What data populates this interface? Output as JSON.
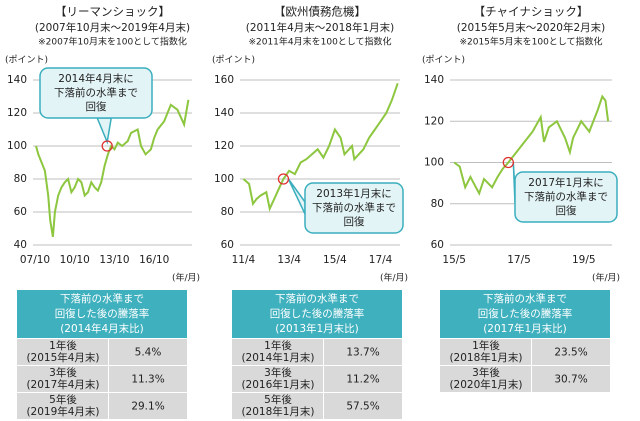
{
  "chart_data": [
    {
      "type": "line",
      "title": "【リーマンショック】",
      "subtitle": "(2007年10月末～2019年4月末)",
      "note": "※2007年10月末を100として指数化",
      "y_label": "(ポイント)",
      "x_label": "(年/月)",
      "color": "#8dc63f",
      "grid": true,
      "x": [
        2007.83,
        2008.0,
        2008.25,
        2008.5,
        2008.75,
        2008.9,
        2009.1,
        2009.25,
        2009.5,
        2009.75,
        2010.0,
        2010.25,
        2010.5,
        2010.75,
        2011.0,
        2011.25,
        2011.5,
        2011.75,
        2012.0,
        2012.25,
        2012.5,
        2012.75,
        2013.0,
        2013.25,
        2013.5,
        2013.75,
        2014.0,
        2014.33,
        2014.75,
        2015.0,
        2015.5,
        2015.75,
        2016.1,
        2016.5,
        2016.75,
        2017.0,
        2017.5,
        2018.0,
        2018.5,
        2018.9,
        2019.0,
        2019.33
      ],
      "values": [
        100,
        95,
        90,
        85,
        70,
        55,
        45,
        60,
        70,
        75,
        78,
        80,
        72,
        75,
        80,
        78,
        70,
        72,
        78,
        75,
        73,
        78,
        88,
        95,
        100,
        98,
        102,
        100,
        103,
        108,
        110,
        100,
        95,
        98,
        105,
        110,
        115,
        125,
        122,
        115,
        113,
        128
      ],
      "xlim": [
        2007.6,
        2019.6
      ],
      "xticks": [
        {
          "value": 2007.75,
          "label": "07/10"
        },
        {
          "value": 2010.75,
          "label": "10/10"
        },
        {
          "value": 2013.75,
          "label": "13/10"
        },
        {
          "value": 2016.75,
          "label": "16/10"
        }
      ],
      "ylim": [
        40,
        140
      ],
      "yticks": [
        40,
        60,
        80,
        100,
        120,
        140
      ],
      "annotation": {
        "text": [
          "2014年4月末に",
          "下落前の水準まで",
          "回復"
        ],
        "x": 2013.2,
        "y": 100
      }
    },
    {
      "type": "line",
      "title": "【欧州債務危機】",
      "subtitle": "(2011年4月末～2018年1月末)",
      "note": "※2011年4月末を100として指数化",
      "y_label": "(ポイント)",
      "x_label": "(年/月)",
      "color": "#8dc63f",
      "grid": true,
      "x": [
        2011.25,
        2011.5,
        2011.67,
        2011.83,
        2012.0,
        2012.25,
        2012.4,
        2012.6,
        2012.83,
        2013.0,
        2013.25,
        2013.5,
        2013.75,
        2014.0,
        2014.25,
        2014.5,
        2014.75,
        2015.0,
        2015.25,
        2015.5,
        2015.67,
        2016.0,
        2016.1,
        2016.5,
        2016.75,
        2017.0,
        2017.25,
        2017.5,
        2017.75,
        2018.0
      ],
      "values": [
        100,
        97,
        85,
        88,
        90,
        92,
        82,
        88,
        95,
        100,
        105,
        103,
        110,
        112,
        115,
        118,
        113,
        120,
        130,
        125,
        115,
        120,
        112,
        118,
        125,
        130,
        135,
        140,
        148,
        158
      ],
      "xlim": [
        2011.1,
        2018.1
      ],
      "xticks": [
        {
          "value": 2011.25,
          "label": "11/4"
        },
        {
          "value": 2013.25,
          "label": "13/4"
        },
        {
          "value": 2015.25,
          "label": "15/4"
        },
        {
          "value": 2017.25,
          "label": "17/4"
        }
      ],
      "ylim": [
        60,
        160
      ],
      "yticks": [
        60,
        80,
        100,
        120,
        140,
        160
      ],
      "annotation": {
        "text": [
          "2013年1月末に",
          "下落前の水準まで",
          "回復"
        ],
        "x": 2013.0,
        "y": 100
      }
    },
    {
      "type": "line",
      "title": "【チャイナショック】",
      "subtitle": "(2015年5月末～2020年2月末)",
      "note": "※2015年5月末を100として指数化",
      "y_label": "(ポイント)",
      "x_label": "(年/月)",
      "color": "#8dc63f",
      "grid": true,
      "x": [
        2015.33,
        2015.5,
        2015.67,
        2015.83,
        2016.0,
        2016.1,
        2016.25,
        2016.5,
        2016.67,
        2016.83,
        2017.0,
        2017.25,
        2017.5,
        2017.75,
        2018.0,
        2018.1,
        2018.25,
        2018.5,
        2018.75,
        2018.9,
        2019.0,
        2019.25,
        2019.5,
        2019.75,
        2019.9,
        2020.0,
        2020.08
      ],
      "values": [
        100,
        98,
        88,
        93,
        88,
        85,
        92,
        88,
        93,
        97,
        100,
        105,
        110,
        115,
        122,
        110,
        117,
        120,
        112,
        105,
        112,
        120,
        115,
        125,
        132,
        130,
        120
      ],
      "xlim": [
        2015.2,
        2020.2
      ],
      "xticks": [
        {
          "value": 2015.33,
          "label": "15/5"
        },
        {
          "value": 2017.33,
          "label": "17/5"
        },
        {
          "value": 2019.33,
          "label": "19/5"
        }
      ],
      "ylim": [
        60,
        140
      ],
      "yticks": [
        60,
        80,
        100,
        120,
        140
      ],
      "annotation": {
        "text": [
          "2017年1月末に",
          "下落前の水準まで",
          "回復"
        ],
        "x": 2017.0,
        "y": 100
      }
    }
  ],
  "tables": [
    {
      "header": [
        "下落前の水準まで",
        "回復した後の騰落率",
        "(2014年4月末比)"
      ],
      "rows": [
        {
          "period": [
            "1年後",
            "(2015年4月末)"
          ],
          "value": "5.4%"
        },
        {
          "period": [
            "3年後",
            "(2017年4月末)"
          ],
          "value": "11.3%"
        },
        {
          "period": [
            "5年後",
            "(2019年4月末)"
          ],
          "value": "29.1%"
        }
      ]
    },
    {
      "header": [
        "下落前の水準まで",
        "回復した後の騰落率",
        "(2013年1月末比)"
      ],
      "rows": [
        {
          "period": [
            "1年後",
            "(2014年1月末)"
          ],
          "value": "13.7%"
        },
        {
          "period": [
            "3年後",
            "(2016年1月末)"
          ],
          "value": "11.2%"
        },
        {
          "period": [
            "5年後",
            "(2018年1月末)"
          ],
          "value": "57.5%"
        }
      ]
    },
    {
      "header": [
        "下落前の水準まで",
        "回復した後の騰落率",
        "(2017年1月末比)"
      ],
      "rows": [
        {
          "period": [
            "1年後",
            "(2018年1月末)"
          ],
          "value": "23.5%"
        },
        {
          "period": [
            "3年後",
            "(2020年1月末)"
          ],
          "value": "30.7%"
        }
      ]
    }
  ]
}
